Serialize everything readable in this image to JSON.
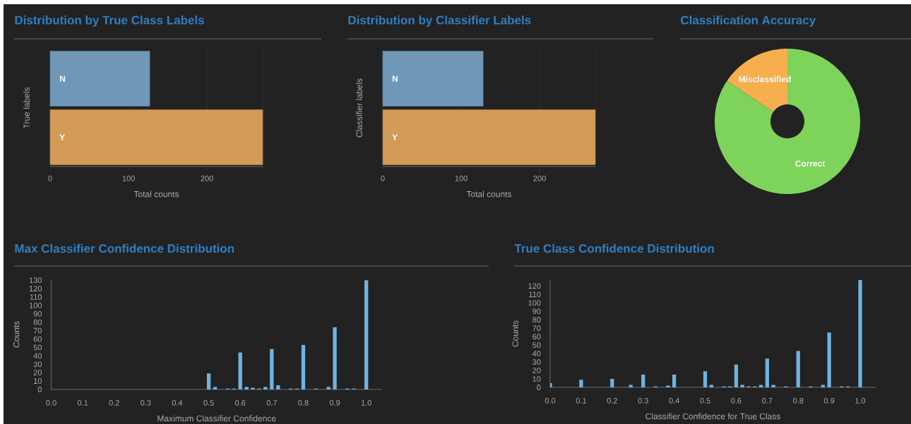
{
  "chart_data": [
    {
      "type": "bar",
      "orientation": "horizontal",
      "title": "Distribution by True Class Labels",
      "xlabel": "Total counts",
      "ylabel": "True labels",
      "categories": [
        "N",
        "Y"
      ],
      "values": [
        127,
        271
      ],
      "colors": [
        "#6f98b8",
        "#d39a58"
      ],
      "xlim": [
        0,
        271
      ],
      "xticks": [
        0,
        100,
        200,
        {
          "value": 271,
          "label": null
        }
      ],
      "grid": "x"
    },
    {
      "type": "bar",
      "orientation": "horizontal",
      "title": "Distribution by Classifier Labels",
      "xlabel": "Total counts",
      "ylabel": "Classifier labels",
      "categories": [
        "N",
        "Y"
      ],
      "values": [
        128,
        271
      ],
      "colors": [
        "#6f98b8",
        "#d39a58"
      ],
      "xlim": [
        0,
        271
      ],
      "xticks": [
        0,
        100,
        200,
        {
          "value": 271,
          "label": null
        }
      ],
      "grid": "x"
    },
    {
      "type": "donut",
      "title": "Classification Accuracy",
      "categories": [
        "Misclassified",
        "Correct"
      ],
      "values": [
        15.6,
        84.4
      ],
      "colors": [
        "#f6ae4f",
        "#7ed35a"
      ]
    },
    {
      "type": "bar",
      "title": "Max Classifier Confidence Distribution",
      "xlabel": "Maximum Classifier Confidence",
      "ylabel": "Counts",
      "color": "#6fb3e0",
      "x": [
        0.5,
        0.52,
        0.56,
        0.58,
        0.6,
        0.62,
        0.64,
        0.66,
        0.68,
        0.7,
        0.72,
        0.76,
        0.78,
        0.8,
        0.84,
        0.88,
        0.9,
        0.94,
        0.96,
        1.0
      ],
      "values": [
        19,
        3,
        1,
        1,
        44,
        3,
        2,
        1,
        3,
        48,
        5,
        1,
        1,
        53,
        1,
        3,
        74,
        1,
        1,
        130
      ],
      "xlim": [
        0,
        1.05
      ],
      "ylim": [
        0,
        131
      ],
      "xticks": [
        {
          "value": 0,
          "label": "0.0"
        },
        0.1,
        0.2,
        0.3,
        0.4,
        0.5,
        0.6,
        0.7,
        0.8,
        0.9,
        {
          "value": 1,
          "label": "1.0"
        }
      ],
      "yticks": [
        0,
        10,
        20,
        30,
        40,
        50,
        60,
        70,
        80,
        90,
        100,
        110,
        120,
        130
      ]
    },
    {
      "type": "bar",
      "title": "True Class Confidence Distribution",
      "xlabel": "Classifier Confidence for True Class",
      "ylabel": "Counts",
      "color": "#6fb3e0",
      "x": [
        0.0,
        0.1,
        0.2,
        0.26,
        0.3,
        0.34,
        0.38,
        0.4,
        0.5,
        0.52,
        0.56,
        0.58,
        0.6,
        0.62,
        0.64,
        0.66,
        0.68,
        0.7,
        0.72,
        0.76,
        0.8,
        0.84,
        0.88,
        0.9,
        0.94,
        0.96,
        1.0
      ],
      "values": [
        5,
        9,
        10,
        3,
        15,
        1,
        2,
        15,
        19,
        3,
        1,
        1,
        27,
        3,
        1,
        1,
        3,
        34,
        3,
        1,
        43,
        1,
        3,
        65,
        1,
        1,
        127
      ],
      "xlim": [
        0,
        1.05
      ],
      "ylim": [
        0,
        127
      ],
      "xticks": [
        {
          "value": 0,
          "label": "0.0"
        },
        0.1,
        0.2,
        0.3,
        0.4,
        0.5,
        0.6,
        0.7,
        0.8,
        0.9,
        {
          "value": 1,
          "label": "1.0"
        }
      ],
      "yticks": [
        0,
        10,
        20,
        30,
        40,
        50,
        60,
        70,
        80,
        90,
        100,
        110,
        120
      ]
    }
  ]
}
